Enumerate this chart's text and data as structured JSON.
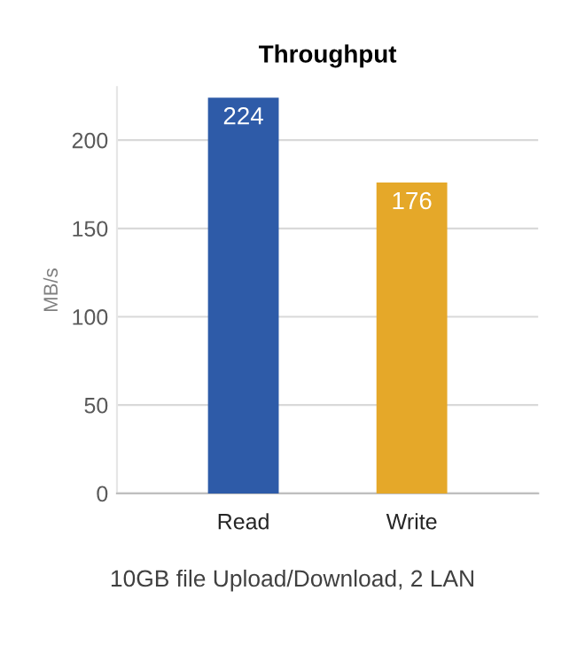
{
  "chart_data": {
    "type": "bar",
    "title": "Throughput",
    "ylabel": "MB/s",
    "categories": [
      "Read",
      "Write"
    ],
    "values": [
      224,
      176
    ],
    "colors": [
      "#2e5ba8",
      "#e5a829"
    ],
    "ylim": [
      0,
      230
    ],
    "yticks": [
      0,
      50,
      100,
      150,
      200
    ],
    "grid": "y",
    "data_labels": true,
    "annotations": [
      "10GB file Upload/Download, 2 LAN"
    ]
  }
}
